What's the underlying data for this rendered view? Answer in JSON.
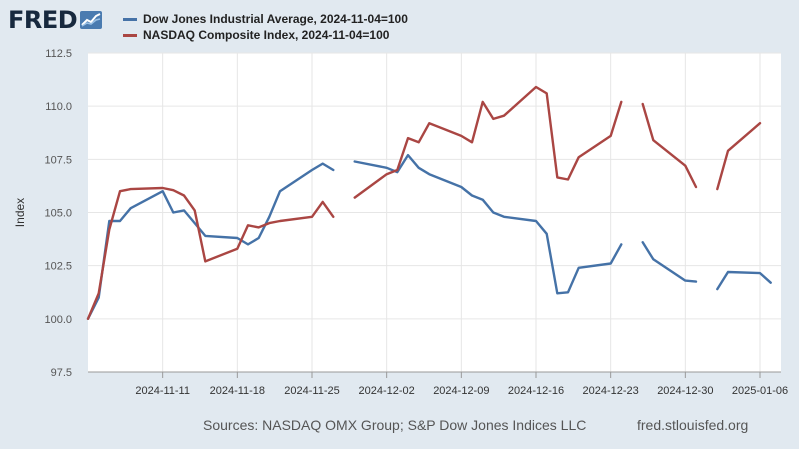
{
  "header": {
    "logo_text": "FRED",
    "logo_icon": "trend-line-icon"
  },
  "colors": {
    "dow": "#4572a7",
    "nasdaq": "#aa4643",
    "plot_bg": "#ffffff",
    "grid": "#e6e6e6"
  },
  "footer": {
    "sources": "Sources: NASDAQ OMX Group; S&P Dow Jones Indices LLC",
    "url": "fred.stlouisfed.org"
  },
  "chart_data": {
    "type": "line",
    "title": "",
    "ylabel": "Index",
    "xlabel": "",
    "ylim": [
      97.5,
      112.5
    ],
    "yticks": [
      "97.5",
      "100.0",
      "102.5",
      "105.0",
      "107.5",
      "110.0",
      "112.5"
    ],
    "xtick_labels": [
      "2024-11-11",
      "2024-11-18",
      "2024-11-25",
      "2024-12-02",
      "2024-12-09",
      "2024-12-16",
      "2024-12-23",
      "2024-12-30",
      "2025-01-06"
    ],
    "xlim": [
      "2024-11-04",
      "2025-01-06"
    ],
    "grid": true,
    "legend_position": "top",
    "series": [
      {
        "name": "Dow Jones Industrial Average, 2024-11-04=100",
        "color": "#4572a7",
        "points": [
          [
            "2024-11-04",
            100.0
          ],
          [
            "2024-11-05",
            101.0
          ],
          [
            "2024-11-06",
            104.6
          ],
          [
            "2024-11-07",
            104.6
          ],
          [
            "2024-11-08",
            105.2
          ],
          [
            "2024-11-11",
            106.0
          ],
          [
            "2024-11-12",
            105.0
          ],
          [
            "2024-11-13",
            105.1
          ],
          [
            "2024-11-14",
            104.5
          ],
          [
            "2024-11-15",
            103.9
          ],
          [
            "2024-11-18",
            103.8
          ],
          [
            "2024-11-19",
            103.5
          ],
          [
            "2024-11-20",
            103.8
          ],
          [
            "2024-11-21",
            104.8
          ],
          [
            "2024-11-22",
            106.0
          ],
          [
            "2024-11-25",
            107.0
          ],
          [
            "2024-11-26",
            107.3
          ],
          [
            "2024-11-27",
            107.0
          ],
          [
            "2024-11-28",
            null
          ],
          [
            "2024-11-29",
            107.4
          ],
          [
            "2024-12-02",
            107.1
          ],
          [
            "2024-12-03",
            106.9
          ],
          [
            "2024-12-04",
            107.7
          ],
          [
            "2024-12-05",
            107.1
          ],
          [
            "2024-12-06",
            106.8
          ],
          [
            "2024-12-09",
            106.2
          ],
          [
            "2024-12-10",
            105.8
          ],
          [
            "2024-12-11",
            105.6
          ],
          [
            "2024-12-12",
            105.0
          ],
          [
            "2024-12-13",
            104.8
          ],
          [
            "2024-12-16",
            104.6
          ],
          [
            "2024-12-17",
            104.0
          ],
          [
            "2024-12-18",
            101.2
          ],
          [
            "2024-12-19",
            101.25
          ],
          [
            "2024-12-20",
            102.4
          ],
          [
            "2024-12-23",
            102.6
          ],
          [
            "2024-12-24",
            103.5
          ],
          [
            "2024-12-25",
            null
          ],
          [
            "2024-12-26",
            103.6
          ],
          [
            "2024-12-27",
            102.8
          ],
          [
            "2024-12-30",
            101.8
          ],
          [
            "2024-12-31",
            101.75
          ],
          [
            "2025-01-01",
            null
          ],
          [
            "2025-01-02",
            101.4
          ],
          [
            "2025-01-03",
            102.2
          ],
          [
            "2025-01-06",
            102.15
          ],
          [
            "2025-01-07",
            101.7
          ]
        ]
      },
      {
        "name": "NASDAQ Composite Index, 2024-11-04=100",
        "color": "#aa4643",
        "points": [
          [
            "2024-11-04",
            100.0
          ],
          [
            "2024-11-05",
            101.2
          ],
          [
            "2024-11-06",
            104.2
          ],
          [
            "2024-11-07",
            106.0
          ],
          [
            "2024-11-08",
            106.1
          ],
          [
            "2024-11-11",
            106.15
          ],
          [
            "2024-11-12",
            106.05
          ],
          [
            "2024-11-13",
            105.8
          ],
          [
            "2024-11-14",
            105.1
          ],
          [
            "2024-11-15",
            102.7
          ],
          [
            "2024-11-18",
            103.3
          ],
          [
            "2024-11-19",
            104.4
          ],
          [
            "2024-11-20",
            104.3
          ],
          [
            "2024-11-21",
            104.5
          ],
          [
            "2024-11-22",
            104.6
          ],
          [
            "2024-11-25",
            104.8
          ],
          [
            "2024-11-26",
            105.5
          ],
          [
            "2024-11-27",
            104.8
          ],
          [
            "2024-11-28",
            null
          ],
          [
            "2024-11-29",
            105.7
          ],
          [
            "2024-12-02",
            106.8
          ],
          [
            "2024-12-03",
            107.0
          ],
          [
            "2024-12-04",
            108.5
          ],
          [
            "2024-12-05",
            108.3
          ],
          [
            "2024-12-06",
            109.2
          ],
          [
            "2024-12-09",
            108.6
          ],
          [
            "2024-12-10",
            108.3
          ],
          [
            "2024-12-11",
            110.2
          ],
          [
            "2024-12-12",
            109.4
          ],
          [
            "2024-12-13",
            109.55
          ],
          [
            "2024-12-16",
            110.9
          ],
          [
            "2024-12-17",
            110.6
          ],
          [
            "2024-12-18",
            106.65
          ],
          [
            "2024-12-19",
            106.55
          ],
          [
            "2024-12-20",
            107.6
          ],
          [
            "2024-12-23",
            108.6
          ],
          [
            "2024-12-24",
            110.2
          ],
          [
            "2024-12-25",
            null
          ],
          [
            "2024-12-26",
            110.1
          ],
          [
            "2024-12-27",
            108.4
          ],
          [
            "2024-12-30",
            107.2
          ],
          [
            "2024-12-31",
            106.2
          ],
          [
            "2025-01-01",
            null
          ],
          [
            "2025-01-02",
            106.1
          ],
          [
            "2025-01-03",
            107.9
          ],
          [
            "2025-01-06",
            109.2
          ]
        ]
      }
    ]
  }
}
